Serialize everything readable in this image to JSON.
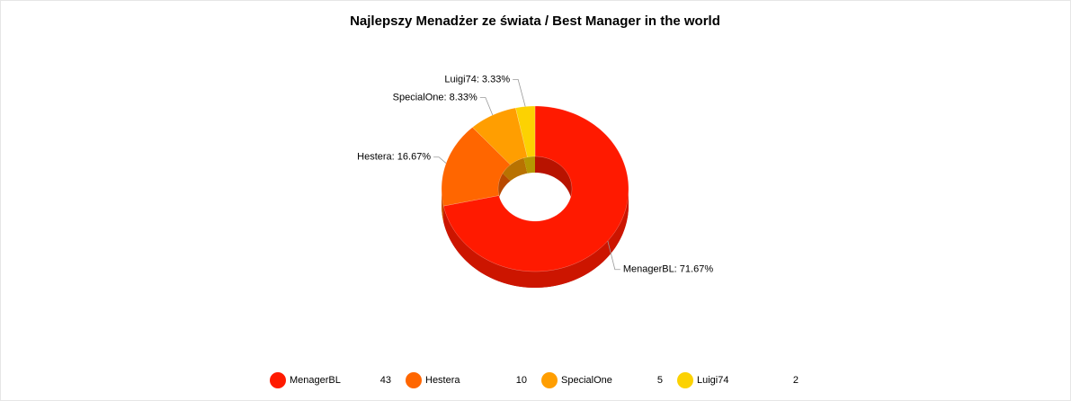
{
  "chart_data": {
    "type": "pie",
    "title": "Najlepszy Menadżer ze świata / Best Manager in the world",
    "categories": [
      "MenagerBL",
      "Hestera",
      "SpecialOne",
      "Luigi74"
    ],
    "values": [
      71.67,
      16.67,
      8.33,
      3.33
    ],
    "value_labels": [
      "MenagerBL: 71.67%",
      "Hestera: 16.67%",
      "SpecialOne: 8.33%",
      "Luigi74: 3.33%"
    ],
    "colors": [
      "#ff1a00",
      "#ff6600",
      "#ff9e01",
      "#fcd202"
    ],
    "legend_counts": [
      43,
      10,
      5,
      2
    ],
    "donut": true,
    "three_d": true,
    "legend": "bottom"
  }
}
